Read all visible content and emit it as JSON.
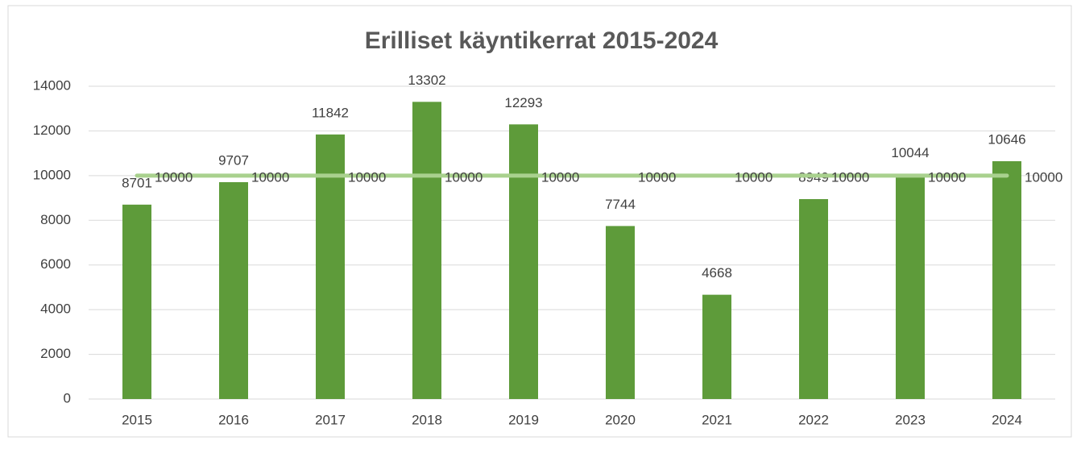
{
  "chart_data": {
    "type": "combo",
    "title": "Erilliset käyntikerrat 2015-2024",
    "categories": [
      "2015",
      "2016",
      "2017",
      "2018",
      "2019",
      "2020",
      "2021",
      "2022",
      "2023",
      "2024"
    ],
    "series": [
      {
        "type": "bar",
        "color": "#5e9b3a",
        "values": [
          8701,
          9707,
          11842,
          13302,
          12293,
          7744,
          4668,
          8949,
          10044,
          10646
        ]
      },
      {
        "type": "line",
        "color": "#a9d18e",
        "values": [
          10000,
          10000,
          10000,
          10000,
          10000,
          10000,
          10000,
          10000,
          10000,
          10000
        ]
      }
    ],
    "ylim": [
      0,
      14000
    ],
    "yticks": [
      0,
      2000,
      4000,
      6000,
      8000,
      10000,
      12000,
      14000
    ],
    "grid": true
  }
}
